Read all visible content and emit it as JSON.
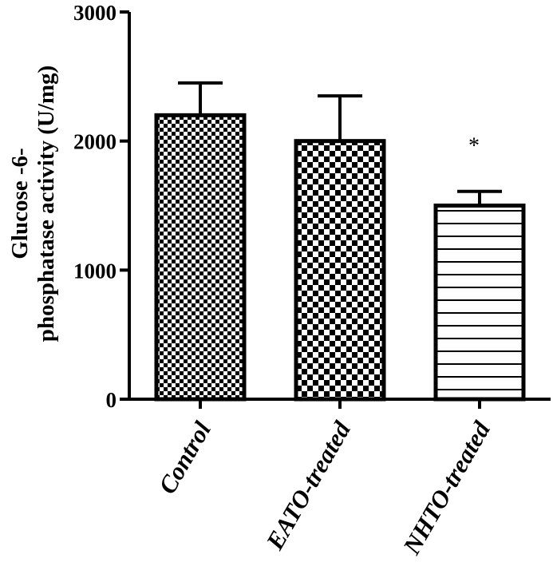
{
  "chart_data": {
    "type": "bar",
    "categories": [
      "Control",
      "EATO-treated",
      "NHTO-treated"
    ],
    "values": [
      2200,
      2000,
      1500
    ],
    "errors": [
      250,
      350,
      110
    ],
    "annotations": [
      "",
      "",
      "*"
    ],
    "ylabel_lines": [
      "Glucose -6-",
      "phosphatase activity (U/mg)"
    ],
    "ylim": [
      0,
      3000
    ],
    "yticks": [
      0,
      1000,
      2000,
      3000
    ],
    "patterns": [
      "fine-checker",
      "checker",
      "horizontal-lines"
    ],
    "colors": {
      "bar_stroke": "#000000",
      "fill_dark": "#000000",
      "fill_light": "#ffffff"
    },
    "grid": false,
    "legend": "none"
  }
}
